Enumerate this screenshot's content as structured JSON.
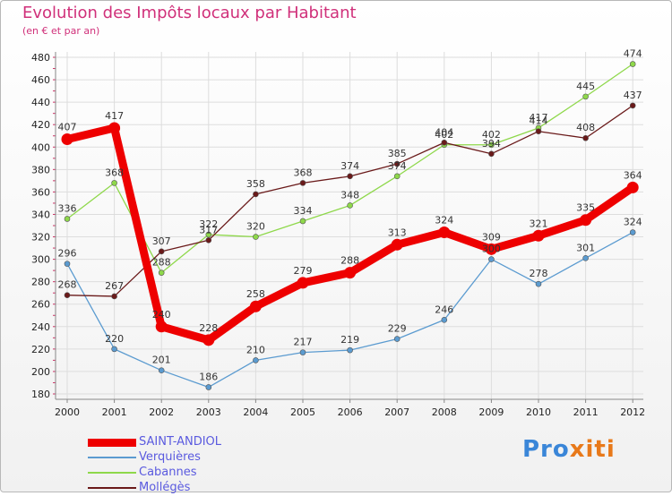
{
  "title": "Evolution des Impôts locaux par Habitant",
  "subtitle": "(en € et par an)",
  "logo": {
    "part1": "Pro",
    "part2": "xiti"
  },
  "chart_data": {
    "type": "line",
    "title": "Evolution des Impôts locaux par Habitant",
    "subtitle": "(en € et par an)",
    "xlabel": "",
    "ylabel": "",
    "x": [
      "2000",
      "2001",
      "2002",
      "2003",
      "2004",
      "2005",
      "2006",
      "2007",
      "2008",
      "2009",
      "2010",
      "2011",
      "2012"
    ],
    "ylim": [
      180,
      480
    ],
    "yticks": [
      180,
      200,
      220,
      240,
      260,
      280,
      300,
      320,
      340,
      360,
      380,
      400,
      420,
      440,
      460,
      480
    ],
    "grid": true,
    "legend_position": "bottom-left",
    "series": [
      {
        "name": "SAINT-ANDIOL",
        "color": "#ee0000",
        "values": [
          407,
          417,
          240,
          228,
          258,
          279,
          288,
          313,
          324,
          309,
          321,
          335,
          364
        ]
      },
      {
        "name": "Verquières",
        "color": "#5b9bd0",
        "values": [
          296,
          220,
          201,
          186,
          210,
          217,
          219,
          229,
          246,
          300,
          278,
          301,
          324
        ]
      },
      {
        "name": "Cabannes",
        "color": "#8ed84a",
        "values": [
          336,
          368,
          288,
          322,
          320,
          334,
          348,
          374,
          402,
          402,
          417,
          445,
          474
        ]
      },
      {
        "name": "Mollégès",
        "color": "#6a1a1a",
        "values": [
          268,
          267,
          307,
          317,
          358,
          368,
          374,
          385,
          404,
          394,
          414,
          408,
          437
        ]
      }
    ]
  }
}
